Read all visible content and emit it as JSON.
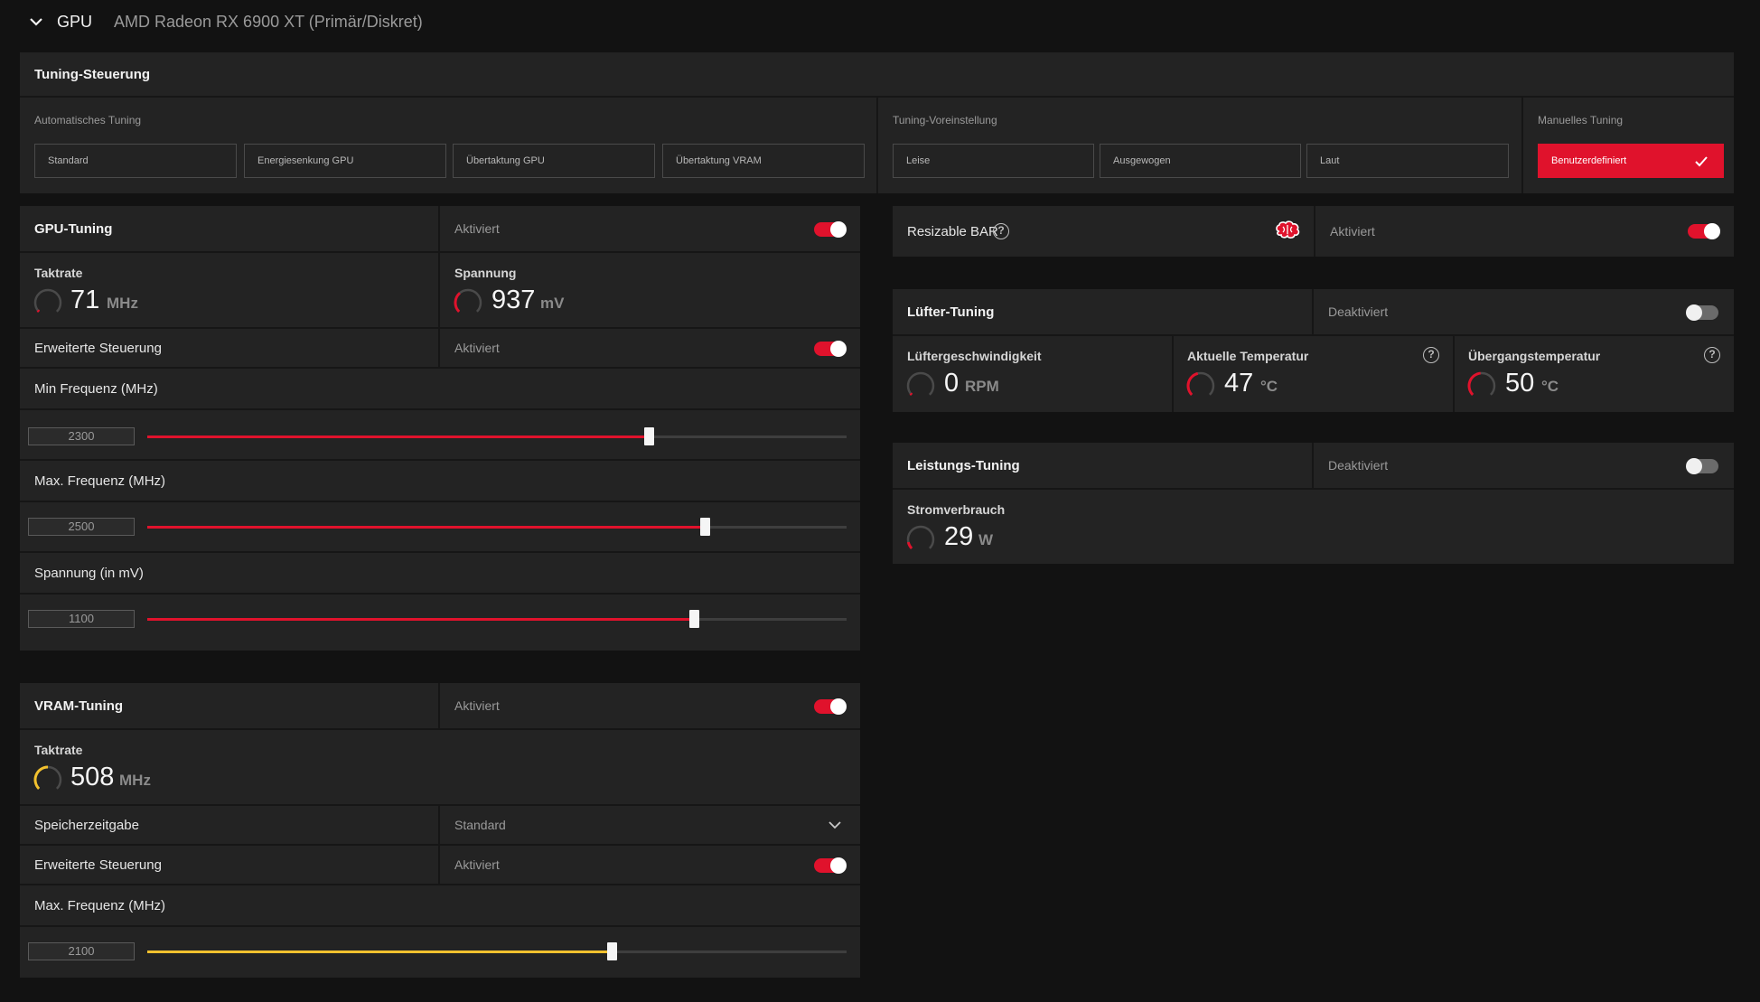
{
  "header": {
    "section": "GPU",
    "device": "AMD Radeon RX 6900 XT (Primär/Diskret)"
  },
  "tuning_control": {
    "title": "Tuning-Steuerung",
    "auto_label": "Automatisches Tuning",
    "auto_options": [
      "Standard",
      "Energiesenkung GPU",
      "Übertaktung GPU",
      "Übertaktung VRAM"
    ],
    "preset_label": "Tuning-Voreinstellung",
    "preset_options": [
      "Leise",
      "Ausgewogen",
      "Laut"
    ],
    "manual_label": "Manuelles Tuning",
    "manual_option": "Benutzerdefiniert"
  },
  "gpu_tuning": {
    "title": "GPU-Tuning",
    "status": "Aktiviert",
    "enabled": true,
    "clock": {
      "title": "Taktrate",
      "value": "71",
      "unit": "MHz",
      "fraction": 0.03
    },
    "voltage": {
      "title": "Spannung",
      "value": "937",
      "unit": "mV",
      "fraction": 0.35
    },
    "advanced": {
      "label": "Erweiterte Steuerung",
      "status": "Aktiviert",
      "enabled": true
    },
    "min_freq": {
      "label": "Min Frequenz (MHz)",
      "value": "2300",
      "fraction": 0.717
    },
    "max_freq": {
      "label": "Max. Frequenz (MHz)",
      "value": "2500",
      "fraction": 0.797
    },
    "voltage_slider": {
      "label": "Spannung (in mV)",
      "value": "1100",
      "fraction": 0.782
    }
  },
  "vram_tuning": {
    "title": "VRAM-Tuning",
    "status": "Aktiviert",
    "enabled": true,
    "clock": {
      "title": "Taktrate",
      "value": "508",
      "unit": "MHz",
      "fraction": 0.5
    },
    "timing": {
      "label": "Speicherzeitgabe",
      "value": "Standard"
    },
    "advanced": {
      "label": "Erweiterte Steuerung",
      "status": "Aktiviert",
      "enabled": true
    },
    "max_freq": {
      "label": "Max. Frequenz (MHz)",
      "value": "2100",
      "fraction": 0.664
    }
  },
  "resizable_bar": {
    "label": "Resizable BAR",
    "status": "Aktiviert",
    "enabled": true
  },
  "fan_tuning": {
    "title": "Lüfter-Tuning",
    "status": "Deaktiviert",
    "enabled": false,
    "speed": {
      "title": "Lüftergeschwindigkeit",
      "value": "0",
      "unit": "RPM",
      "fraction": 0.0
    },
    "current_temp": {
      "title": "Aktuelle Temperatur",
      "value": "47",
      "unit": "°C",
      "fraction": 0.45
    },
    "junction_temp": {
      "title": "Übergangstemperatur",
      "value": "50",
      "unit": "°C",
      "fraction": 0.48
    }
  },
  "power_tuning": {
    "title": "Leistungs-Tuning",
    "status": "Deaktiviert",
    "enabled": false,
    "power": {
      "title": "Stromverbrauch",
      "value": "29",
      "unit": "W",
      "fraction": 0.12
    }
  },
  "colors": {
    "accent": "#e0122c",
    "vram_accent": "#f2c12e",
    "bg": "#121212",
    "panel": "#232323"
  }
}
